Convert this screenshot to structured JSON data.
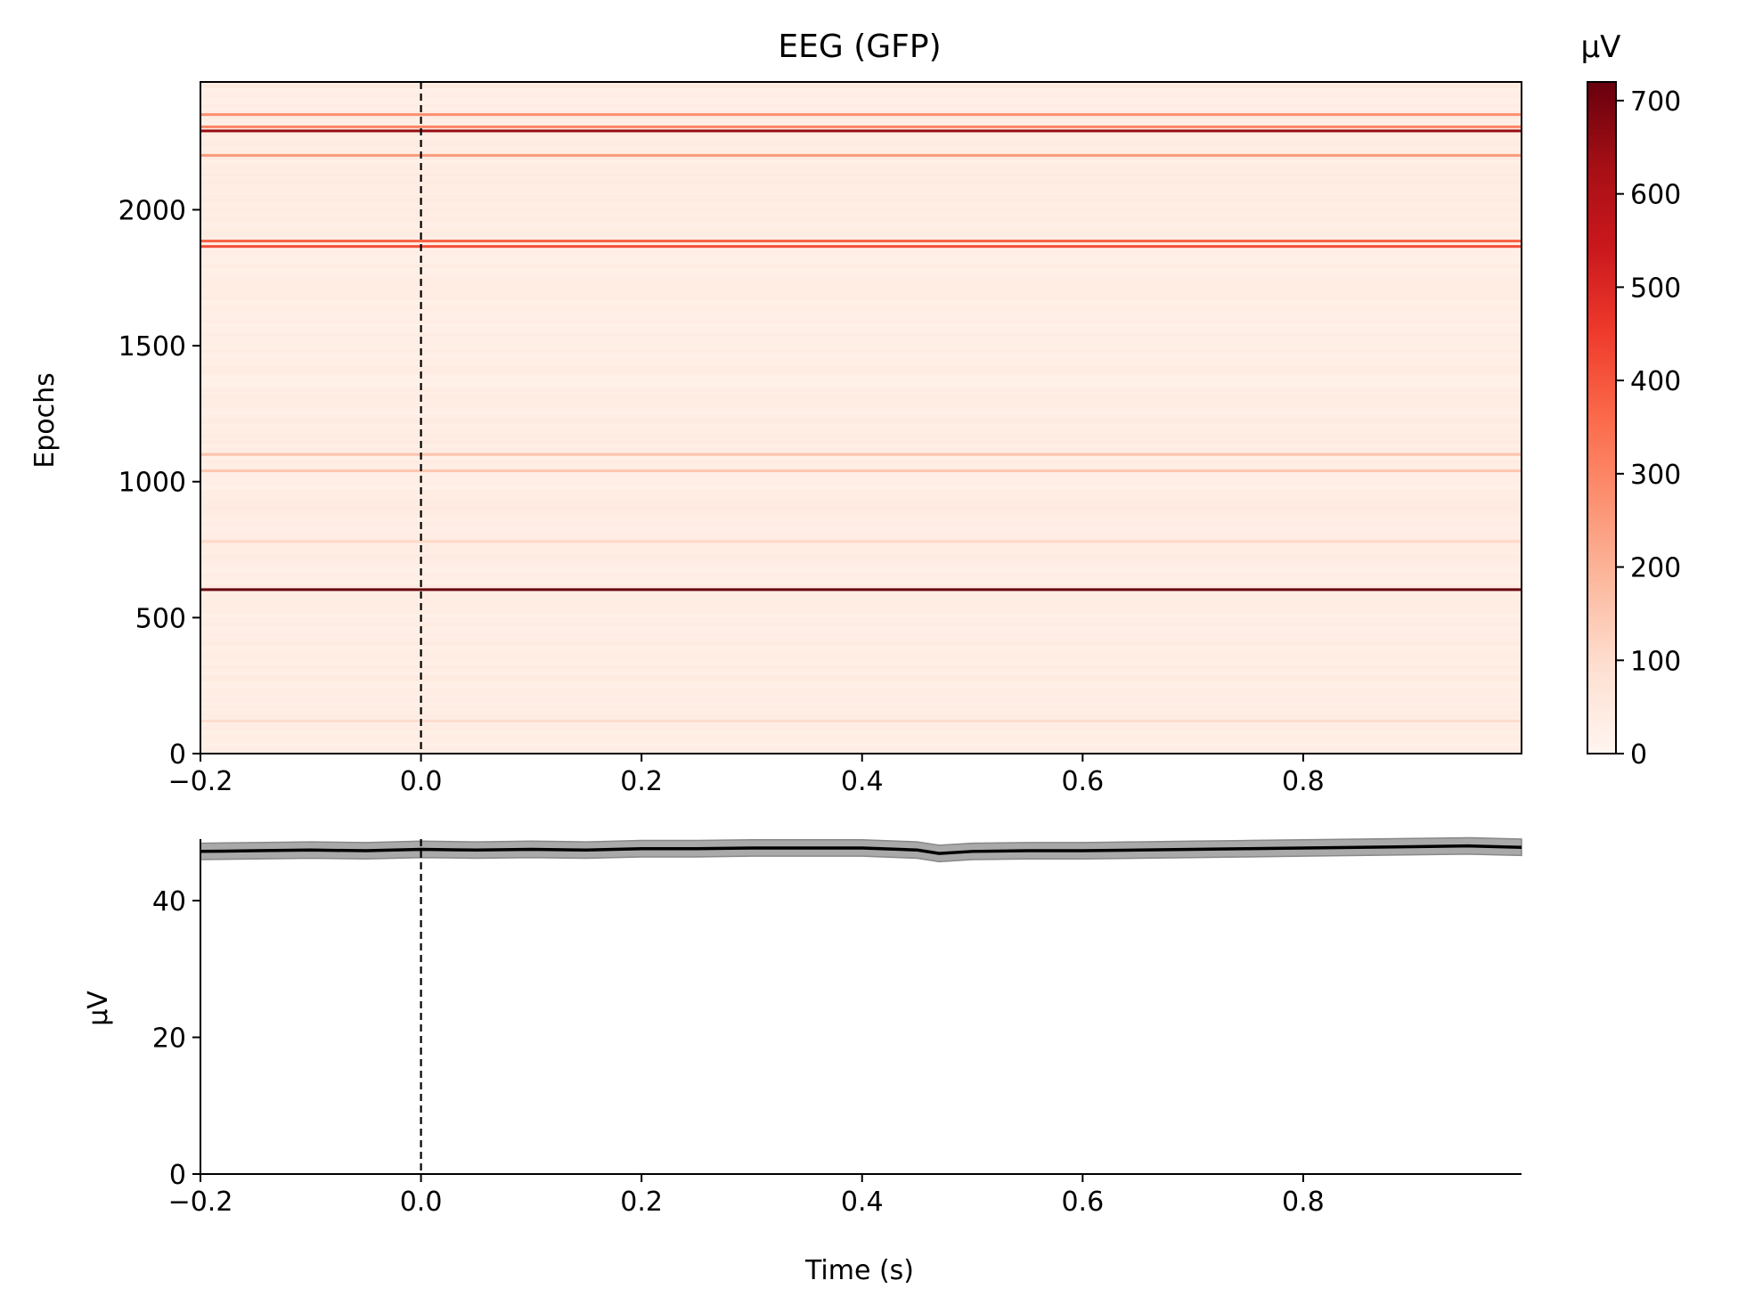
{
  "chart_data": [
    {
      "type": "heatmap",
      "title": "EEG (GFP)",
      "ylabel": "Epochs",
      "xlabel": "",
      "xlim": [
        -0.2,
        0.998
      ],
      "ylim": [
        0,
        2470
      ],
      "x_ticks": [
        "−0.2",
        "0.0",
        "0.2",
        "0.4",
        "0.6",
        "0.8"
      ],
      "x_tick_values": [
        -0.2,
        0.0,
        0.2,
        0.4,
        0.6,
        0.8
      ],
      "y_ticks": [
        "0",
        "500",
        "1000",
        "1500",
        "2000"
      ],
      "y_tick_values": [
        0,
        500,
        1000,
        1500,
        2000
      ],
      "event_marker_x": 0.0,
      "colormap": "Reds",
      "baseline_value": 35,
      "highlighted_epochs": [
        {
          "epoch": 603,
          "value": 720
        },
        {
          "epoch": 1865,
          "value": 420
        },
        {
          "epoch": 1885,
          "value": 380
        },
        {
          "epoch": 2200,
          "value": 250
        },
        {
          "epoch": 2290,
          "value": 650
        },
        {
          "epoch": 2305,
          "value": 300
        },
        {
          "epoch": 2350,
          "value": 280
        },
        {
          "epoch": 1100,
          "value": 160
        },
        {
          "epoch": 1040,
          "value": 150
        },
        {
          "epoch": 780,
          "value": 110
        },
        {
          "epoch": 120,
          "value": 100
        }
      ],
      "colorbar": {
        "label": "µV",
        "range": [
          0,
          720
        ],
        "ticks": [
          "0",
          "100",
          "200",
          "300",
          "400",
          "500",
          "600",
          "700"
        ],
        "tick_values": [
          0,
          100,
          200,
          300,
          400,
          500,
          600,
          700
        ]
      }
    },
    {
      "type": "line",
      "title": "",
      "xlabel": "Time (s)",
      "ylabel": "µV",
      "xlim": [
        -0.2,
        0.998
      ],
      "ylim": [
        0,
        49
      ],
      "x_ticks": [
        "−0.2",
        "0.0",
        "0.2",
        "0.4",
        "0.6",
        "0.8"
      ],
      "x_tick_values": [
        -0.2,
        0.0,
        0.2,
        0.4,
        0.6,
        0.8
      ],
      "y_ticks": [
        "0",
        "20",
        "40"
      ],
      "y_tick_values": [
        0,
        20,
        40
      ],
      "event_marker_x": 0.0,
      "series": [
        {
          "x": [
            -0.2,
            -0.15,
            -0.1,
            -0.05,
            0.0,
            0.05,
            0.1,
            0.15,
            0.2,
            0.25,
            0.3,
            0.35,
            0.4,
            0.45,
            0.47,
            0.5,
            0.55,
            0.6,
            0.65,
            0.7,
            0.75,
            0.8,
            0.85,
            0.9,
            0.95,
            0.998
          ],
          "values": [
            47.2,
            47.3,
            47.4,
            47.3,
            47.5,
            47.4,
            47.5,
            47.4,
            47.6,
            47.6,
            47.7,
            47.7,
            47.7,
            47.4,
            46.9,
            47.2,
            47.3,
            47.3,
            47.4,
            47.5,
            47.6,
            47.7,
            47.8,
            47.9,
            48.0,
            47.8
          ],
          "band_halfwidth": 1.2,
          "color": "#000000",
          "band_color": "#a9a9a9"
        }
      ]
    }
  ]
}
